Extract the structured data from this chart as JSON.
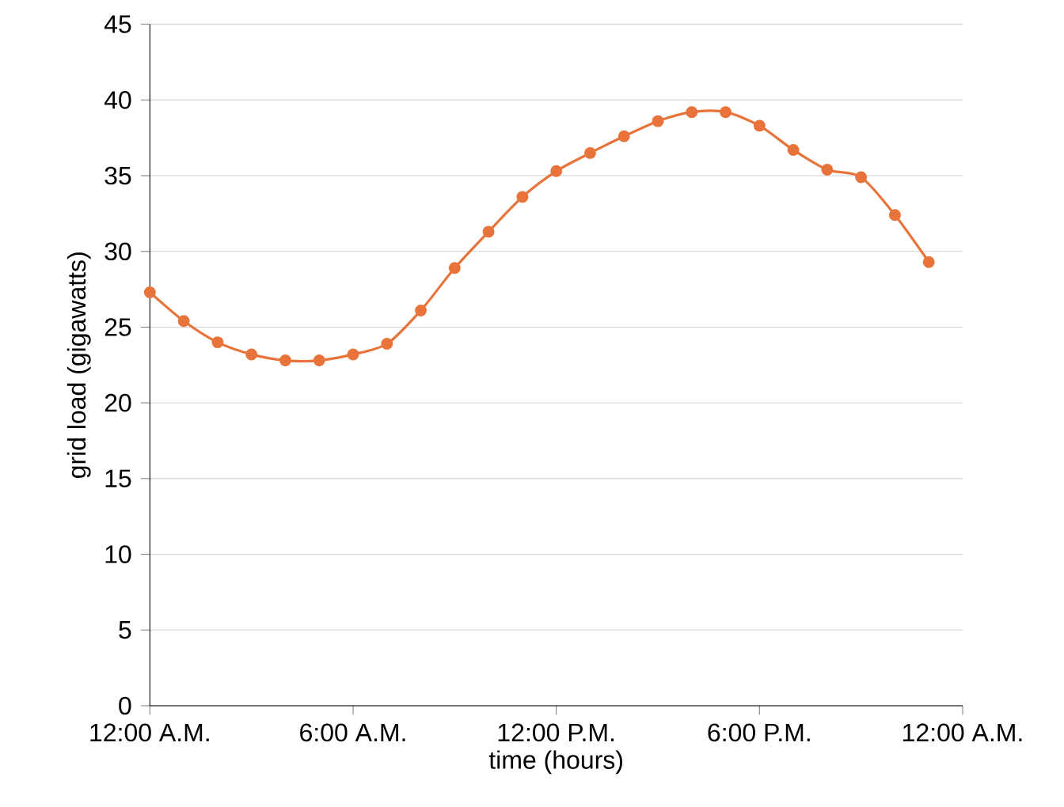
{
  "chart_data": {
    "type": "line",
    "xlabel": "time (hours)",
    "ylabel": "grid load (gigawatts)",
    "x": [
      0,
      1,
      2,
      3,
      4,
      5,
      6,
      7,
      8,
      9,
      10,
      11,
      12,
      13,
      14,
      15,
      16,
      17,
      18,
      19,
      20,
      21,
      22,
      23
    ],
    "values": [
      27.3,
      25.4,
      24.0,
      23.2,
      22.8,
      22.8,
      23.2,
      23.9,
      26.1,
      28.9,
      31.3,
      33.6,
      35.3,
      36.5,
      37.6,
      38.6,
      39.2,
      39.2,
      38.3,
      36.7,
      35.4,
      34.9,
      32.4,
      29.3
    ],
    "color": "#e8743b",
    "xlim": [
      0,
      24
    ],
    "xticks": [
      {
        "value": 0,
        "label": "12:00 A.M."
      },
      {
        "value": 6,
        "label": "6:00 A.M."
      },
      {
        "value": 12,
        "label": "12:00 P.M."
      },
      {
        "value": 18,
        "label": "6:00 P.M."
      },
      {
        "value": 24,
        "label": "12:00 A.M."
      }
    ],
    "ylim": [
      0,
      45
    ],
    "yticks": [
      0,
      5,
      10,
      15,
      20,
      25,
      30,
      35,
      40,
      45
    ],
    "grid": "y",
    "marker": "circle"
  }
}
